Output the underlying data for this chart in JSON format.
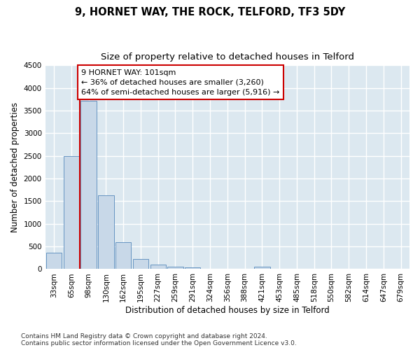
{
  "title": "9, HORNET WAY, THE ROCK, TELFORD, TF3 5DY",
  "subtitle": "Size of property relative to detached houses in Telford",
  "xlabel": "Distribution of detached houses by size in Telford",
  "ylabel": "Number of detached properties",
  "categories": [
    "33sqm",
    "65sqm",
    "98sqm",
    "130sqm",
    "162sqm",
    "195sqm",
    "227sqm",
    "259sqm",
    "291sqm",
    "324sqm",
    "356sqm",
    "388sqm",
    "421sqm",
    "453sqm",
    "485sqm",
    "518sqm",
    "550sqm",
    "582sqm",
    "614sqm",
    "647sqm",
    "679sqm"
  ],
  "values": [
    370,
    2500,
    3720,
    1630,
    590,
    220,
    105,
    60,
    35,
    0,
    0,
    0,
    60,
    0,
    0,
    0,
    0,
    0,
    0,
    0,
    0
  ],
  "bar_color": "#c8d8e8",
  "bar_edge_color": "#5588bb",
  "ylim": [
    0,
    4500
  ],
  "yticks": [
    0,
    500,
    1000,
    1500,
    2000,
    2500,
    3000,
    3500,
    4000,
    4500
  ],
  "property_bar_index": 2,
  "annotation_text_line1": "9 HORNET WAY: 101sqm",
  "annotation_text_line2": "← 36% of detached houses are smaller (3,260)",
  "annotation_text_line3": "64% of semi-detached houses are larger (5,916) →",
  "annotation_box_color": "#ffffff",
  "annotation_box_edge": "#cc0000",
  "vline_color": "#cc0000",
  "footer_line1": "Contains HM Land Registry data © Crown copyright and database right 2024.",
  "footer_line2": "Contains public sector information licensed under the Open Government Licence v3.0.",
  "plot_bg_color": "#dce8f0",
  "fig_bg_color": "#ffffff",
  "grid_color": "#ffffff",
  "title_fontsize": 10.5,
  "subtitle_fontsize": 9.5,
  "axis_label_fontsize": 8.5,
  "tick_fontsize": 7.5,
  "annotation_fontsize": 8,
  "footer_fontsize": 6.5
}
